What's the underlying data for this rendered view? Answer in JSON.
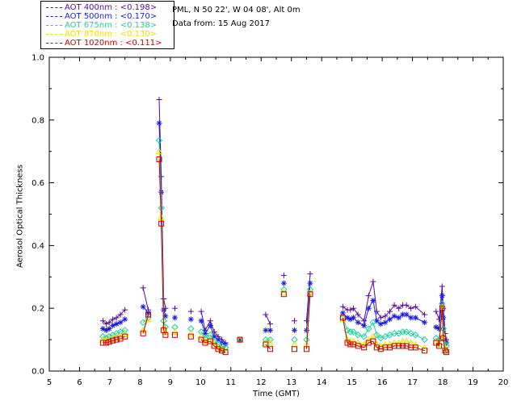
{
  "header": {
    "station": "PML, N 50 22', W 04 08', Alt 0m",
    "date": "Data from: 15 Aug 2017"
  },
  "legend": [
    {
      "label": "AOT  400nm : <0.198>",
      "color": "#5a0a96"
    },
    {
      "label": "AOT  500nm : <0.170>",
      "color": "#1c1ce6"
    },
    {
      "label": "AOT  675nm : <0.138>",
      "color": "#18d2a0"
    },
    {
      "label": "AOT  870nm : <0.130>",
      "color": "#f0e000"
    },
    {
      "label": "AOT 1020nm : <0.111>",
      "color": "#c80000"
    }
  ],
  "chart_data": {
    "type": "line",
    "xlabel": "Time (GMT)",
    "ylabel": "Aerosol Optical Thickness",
    "xlim": [
      5,
      20
    ],
    "ylim": [
      0.0,
      1.0
    ],
    "xticks": [
      "5",
      "6",
      "7",
      "8",
      "9",
      "10",
      "11",
      "12",
      "13",
      "14",
      "15",
      "16",
      "17",
      "18",
      "19",
      "20"
    ],
    "yticks": [
      "0.0",
      "0.2",
      "0.4",
      "0.6",
      "0.8",
      "1.0"
    ],
    "markers": {
      "AOT  400nm": "plus",
      "AOT  500nm": "asterisk",
      "AOT  675nm": "diamond",
      "AOT  870nm": "triangle",
      "AOT 1020nm": "square"
    },
    "x": [
      6.77,
      6.88,
      6.98,
      7.1,
      7.22,
      7.35,
      7.5,
      8.1,
      8.27,
      8.63,
      8.7,
      8.78,
      8.84,
      9.15,
      9.68,
      10.02,
      10.15,
      10.32,
      10.45,
      10.58,
      10.7,
      10.82,
      11.3,
      12.15,
      12.3,
      12.75,
      13.1,
      13.5,
      13.62,
      14.7,
      14.85,
      14.95,
      15.05,
      15.2,
      15.4,
      15.55,
      15.7,
      15.82,
      15.95,
      16.1,
      16.25,
      16.4,
      16.55,
      16.68,
      16.8,
      16.95,
      17.1,
      17.4,
      17.78,
      17.88,
      17.98,
      18.02,
      18.08,
      18.12
    ],
    "series": [
      {
        "name": "AOT  400nm",
        "values": [
          0.16,
          0.15,
          0.155,
          0.165,
          0.17,
          0.18,
          0.195,
          0.265,
          0.195,
          0.865,
          0.62,
          0.23,
          0.2,
          0.2,
          0.19,
          0.19,
          0.13,
          0.16,
          0.125,
          0.11,
          0.1,
          0.09,
          0.1,
          0.18,
          0.15,
          0.305,
          0.16,
          0.16,
          0.31,
          0.205,
          0.195,
          0.195,
          0.2,
          0.18,
          0.16,
          0.24,
          0.285,
          0.19,
          0.17,
          0.175,
          0.19,
          0.21,
          0.2,
          0.21,
          0.21,
          0.2,
          0.205,
          0.18,
          0.19,
          0.165,
          0.27,
          0.2,
          0.12,
          0.1
        ]
      },
      {
        "name": "AOT  500nm",
        "values": [
          0.135,
          0.13,
          0.135,
          0.145,
          0.15,
          0.155,
          0.165,
          0.205,
          0.185,
          0.79,
          0.57,
          0.195,
          0.175,
          0.17,
          0.165,
          0.16,
          0.12,
          0.145,
          0.11,
          0.1,
          0.09,
          0.085,
          0.1,
          0.13,
          0.13,
          0.28,
          0.13,
          0.13,
          0.28,
          0.185,
          0.17,
          0.165,
          0.17,
          0.155,
          0.145,
          0.2,
          0.225,
          0.16,
          0.15,
          0.155,
          0.165,
          0.175,
          0.17,
          0.18,
          0.18,
          0.17,
          0.17,
          0.155,
          0.14,
          0.135,
          0.24,
          0.17,
          0.1,
          0.09
        ]
      },
      {
        "name": "AOT  675nm",
        "values": [
          0.11,
          0.105,
          0.11,
          0.115,
          0.12,
          0.125,
          0.13,
          0.155,
          0.17,
          0.735,
          0.52,
          0.16,
          0.14,
          0.14,
          0.135,
          0.125,
          0.105,
          0.115,
          0.095,
          0.085,
          0.08,
          0.075,
          0.1,
          0.1,
          0.1,
          0.26,
          0.1,
          0.1,
          0.26,
          0.17,
          0.13,
          0.125,
          0.125,
          0.115,
          0.11,
          0.135,
          0.155,
          0.115,
          0.105,
          0.11,
          0.115,
          0.12,
          0.12,
          0.125,
          0.125,
          0.12,
          0.115,
          0.1,
          0.105,
          0.1,
          0.215,
          0.135,
          0.085,
          0.08
        ]
      },
      {
        "name": "AOT  870nm",
        "values": [
          0.1,
          0.1,
          0.1,
          0.105,
          0.11,
          0.11,
          0.12,
          0.13,
          0.165,
          0.7,
          0.49,
          0.14,
          0.125,
          0.125,
          0.12,
          0.11,
          0.095,
          0.1,
          0.085,
          0.075,
          0.07,
          0.065,
          0.1,
          0.09,
          0.09,
          0.25,
          0.085,
          0.085,
          0.25,
          0.165,
          0.1,
          0.095,
          0.095,
          0.09,
          0.085,
          0.1,
          0.11,
          0.085,
          0.08,
          0.085,
          0.085,
          0.09,
          0.09,
          0.095,
          0.095,
          0.09,
          0.085,
          0.075,
          0.095,
          0.085,
          0.205,
          0.115,
          0.075,
          0.07
        ]
      },
      {
        "name": "AOT 1020nm",
        "values": [
          0.09,
          0.09,
          0.093,
          0.097,
          0.1,
          0.103,
          0.11,
          0.12,
          0.18,
          0.675,
          0.47,
          0.13,
          0.115,
          0.115,
          0.11,
          0.1,
          0.09,
          0.095,
          0.08,
          0.07,
          0.065,
          0.06,
          0.1,
          0.085,
          0.07,
          0.245,
          0.07,
          0.07,
          0.245,
          0.17,
          0.09,
          0.085,
          0.085,
          0.08,
          0.075,
          0.09,
          0.095,
          0.075,
          0.07,
          0.075,
          0.075,
          0.08,
          0.08,
          0.08,
          0.08,
          0.075,
          0.075,
          0.065,
          0.09,
          0.08,
          0.2,
          0.105,
          0.065,
          0.06
        ]
      }
    ]
  }
}
